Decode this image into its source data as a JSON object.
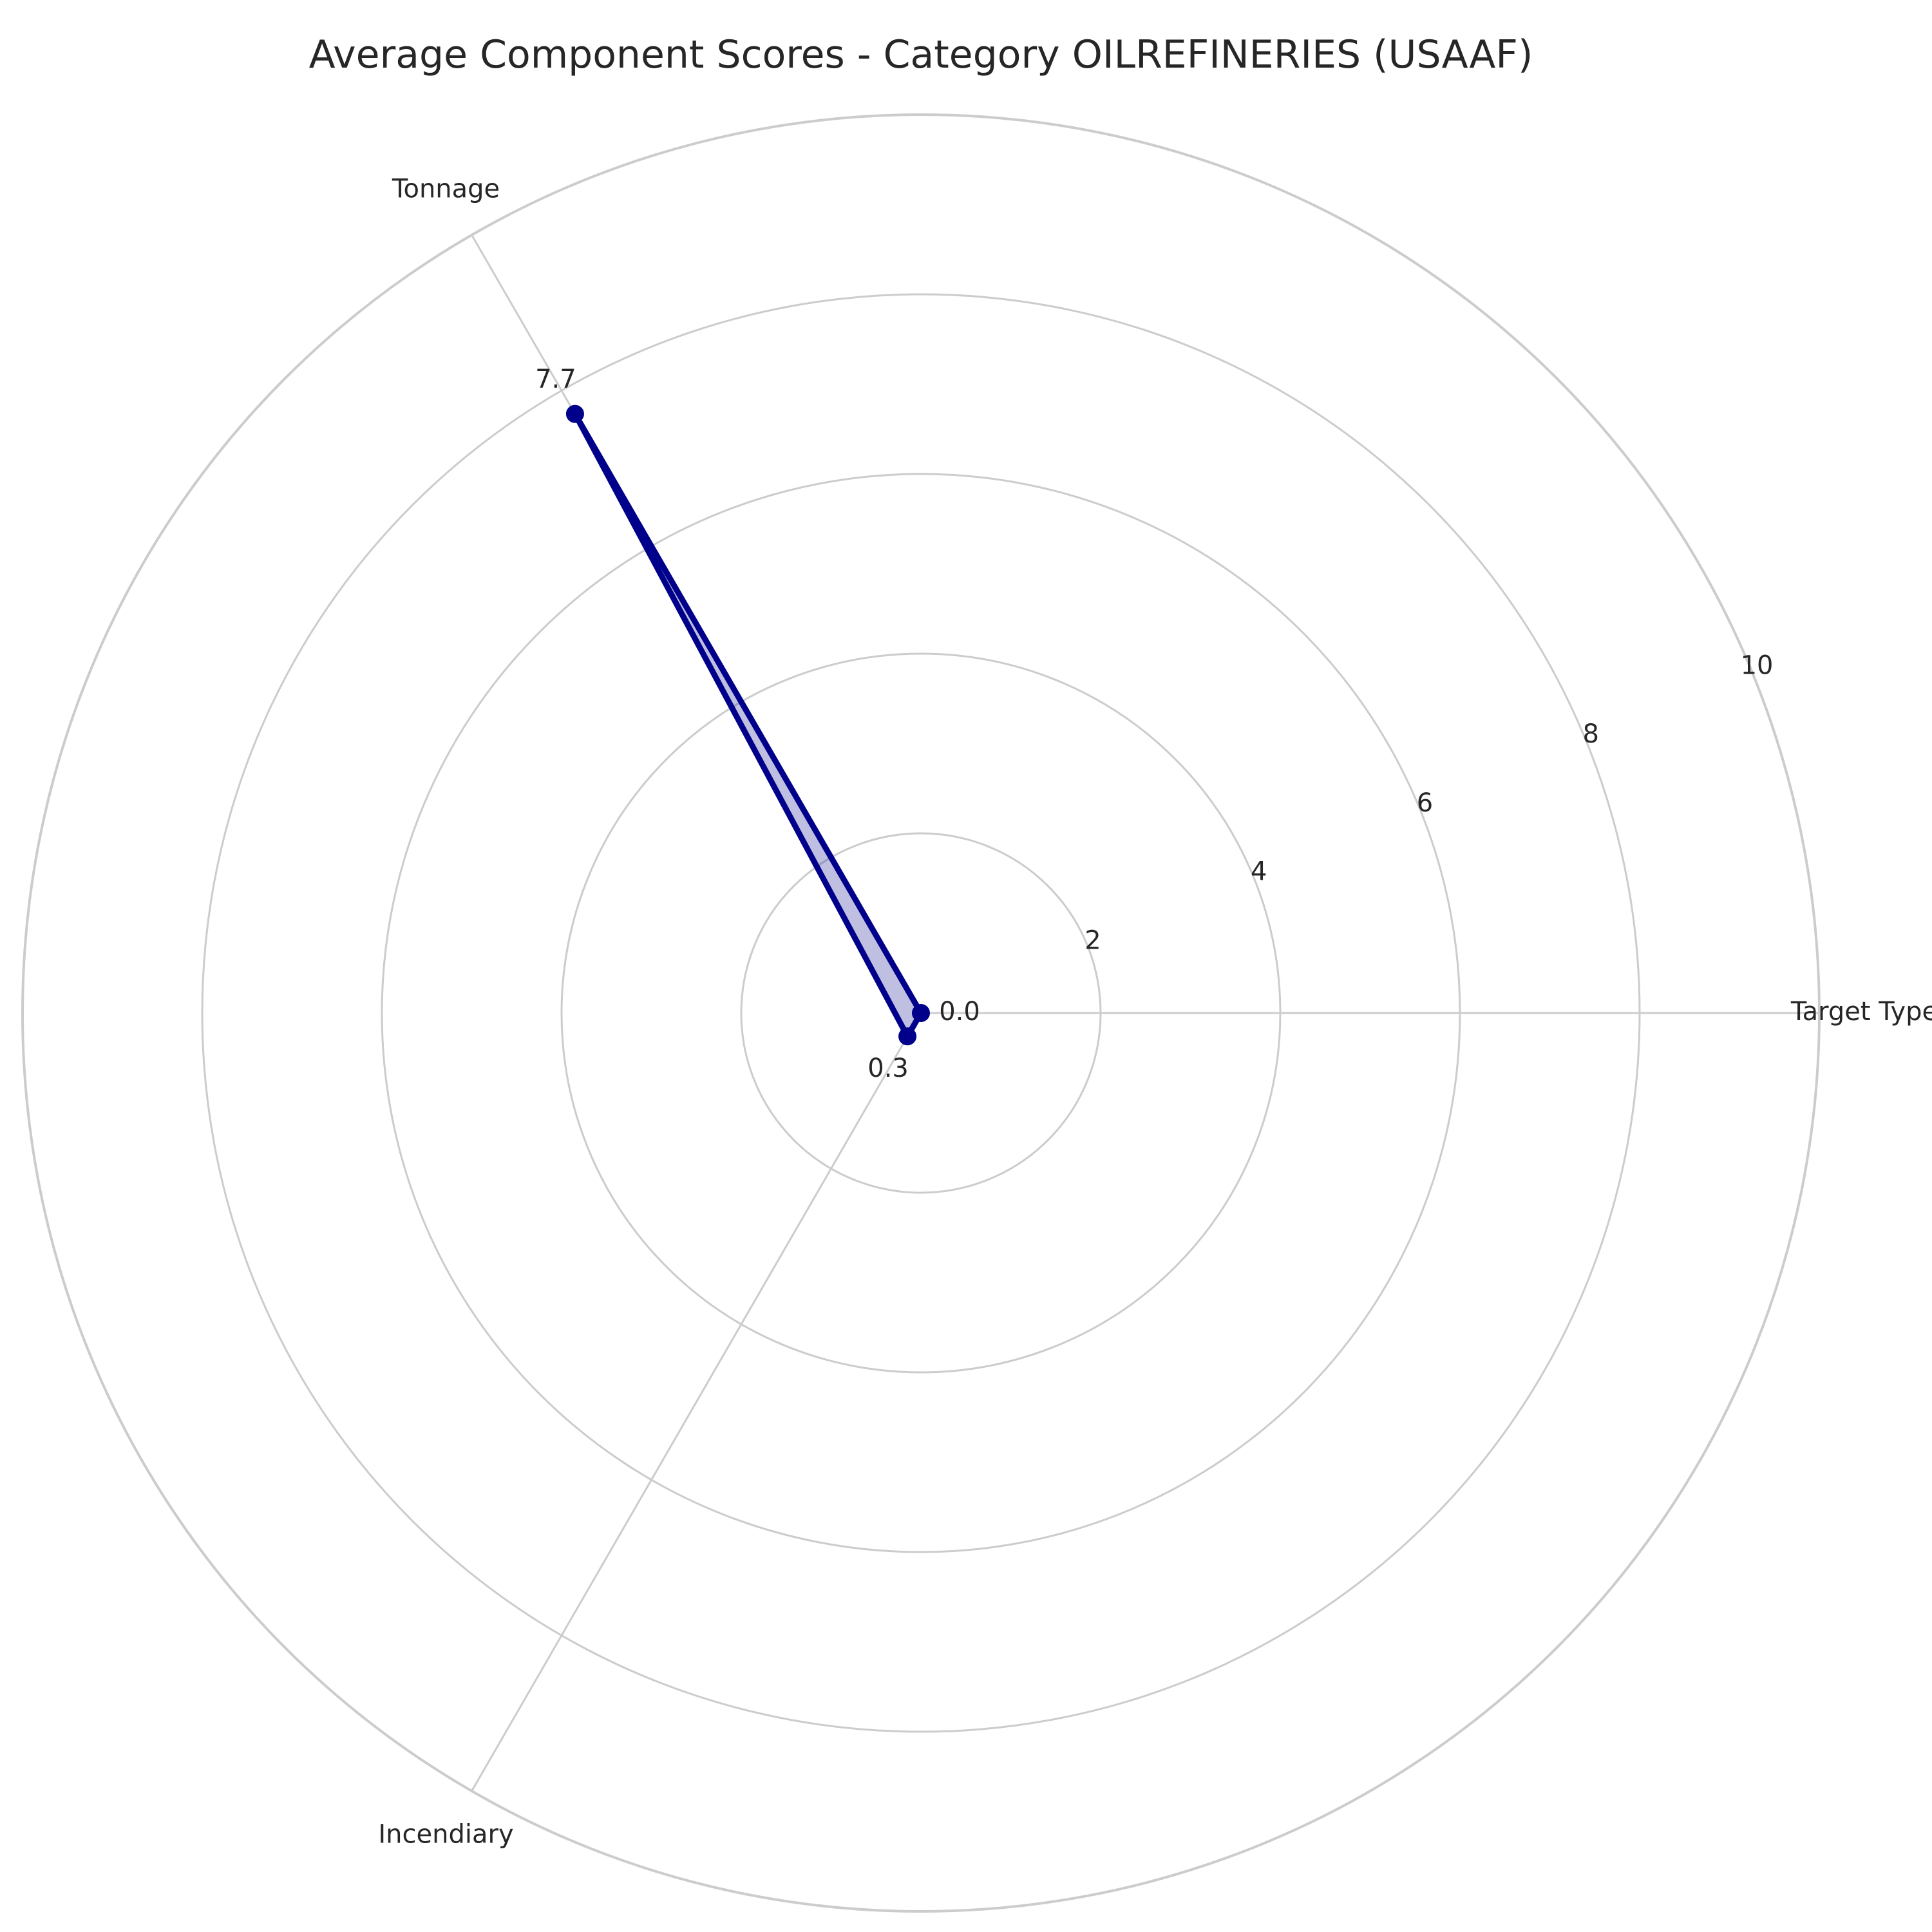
{
  "chart_data": {
    "type": "radar",
    "title": "Average Component Scores - Category OILREFINERIES (USAAF)",
    "categories": [
      "Target Type",
      "Tonnage",
      "Incendiary"
    ],
    "series": [
      {
        "values": [
          0.0,
          7.7,
          0.3
        ],
        "value_labels": [
          "0.0",
          "7.7",
          "0.3"
        ]
      }
    ],
    "rlim": [
      0,
      10
    ],
    "r_ticks": [
      2,
      4,
      6,
      8,
      10
    ],
    "r_tick_labels": [
      "2",
      "4",
      "6",
      "8",
      "10"
    ],
    "grid": true,
    "colors": {
      "line": "#00008b",
      "fill": "#00008b",
      "grid": "#cccccc",
      "text": "#262626"
    }
  }
}
